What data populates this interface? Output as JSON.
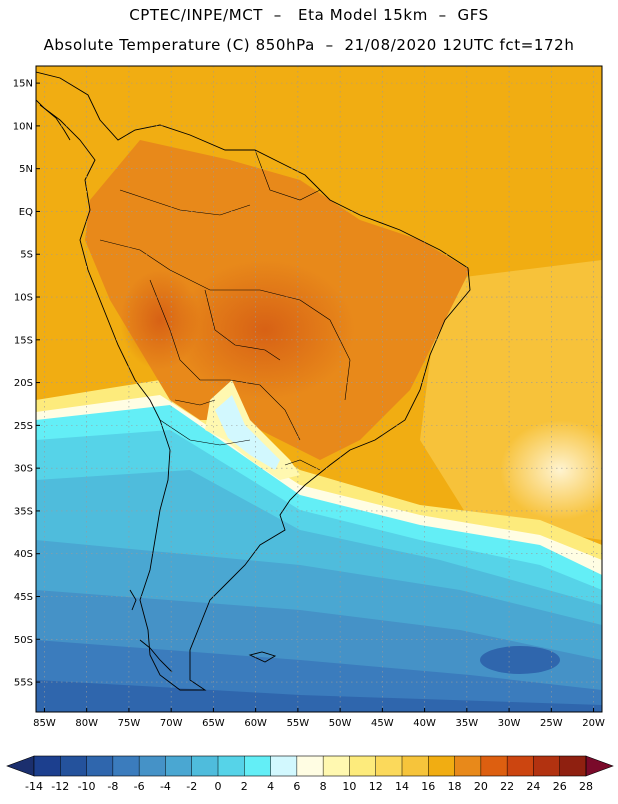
{
  "header": {
    "line1": "CPTEC/INPE/MCT  –   Eta Model 15km  –  GFS",
    "line2": "Absolute Temperature (C) 850hPa  –  21/08/2020 12UTC fct=172h"
  },
  "map": {
    "lat_labels": [
      "15N",
      "10N",
      "5N",
      "EQ",
      "5S",
      "10S",
      "15S",
      "20S",
      "25S",
      "30S",
      "35S",
      "40S",
      "45S",
      "50S",
      "55S"
    ],
    "lon_labels": [
      "85W",
      "80W",
      "75W",
      "70W",
      "65W",
      "60W",
      "55W",
      "50W",
      "45W",
      "40W",
      "35W",
      "30W",
      "25W",
      "20W"
    ],
    "lon_range": [
      -86,
      -19
    ],
    "lat_range": [
      -58.5,
      17
    ],
    "gridlines": "dotted"
  },
  "colorbar": {
    "ticks": [
      "-14",
      "-12",
      "-10",
      "-8",
      "-6",
      "-4",
      "-2",
      "0",
      "2",
      "4",
      "6",
      "8",
      "10",
      "12",
      "14",
      "16",
      "18",
      "20",
      "22",
      "24",
      "26",
      "28"
    ],
    "colors": [
      "#1c3f8e",
      "#24529c",
      "#2f66ad",
      "#3b7cbd",
      "#4592c7",
      "#4aa7d2",
      "#4fbcdc",
      "#56d3e8",
      "#63eef6",
      "#d2f8fe",
      "#fffde3",
      "#fff8b0",
      "#fdeb7c",
      "#fbd95b",
      "#f6c43b",
      "#f1ad12",
      "#e8891a",
      "#dd5f10",
      "#cc4510",
      "#b23210",
      "#8f2010"
    ],
    "low_arrow_color": "#1b2f6e",
    "high_arrow_color": "#7a0a2a"
  }
}
